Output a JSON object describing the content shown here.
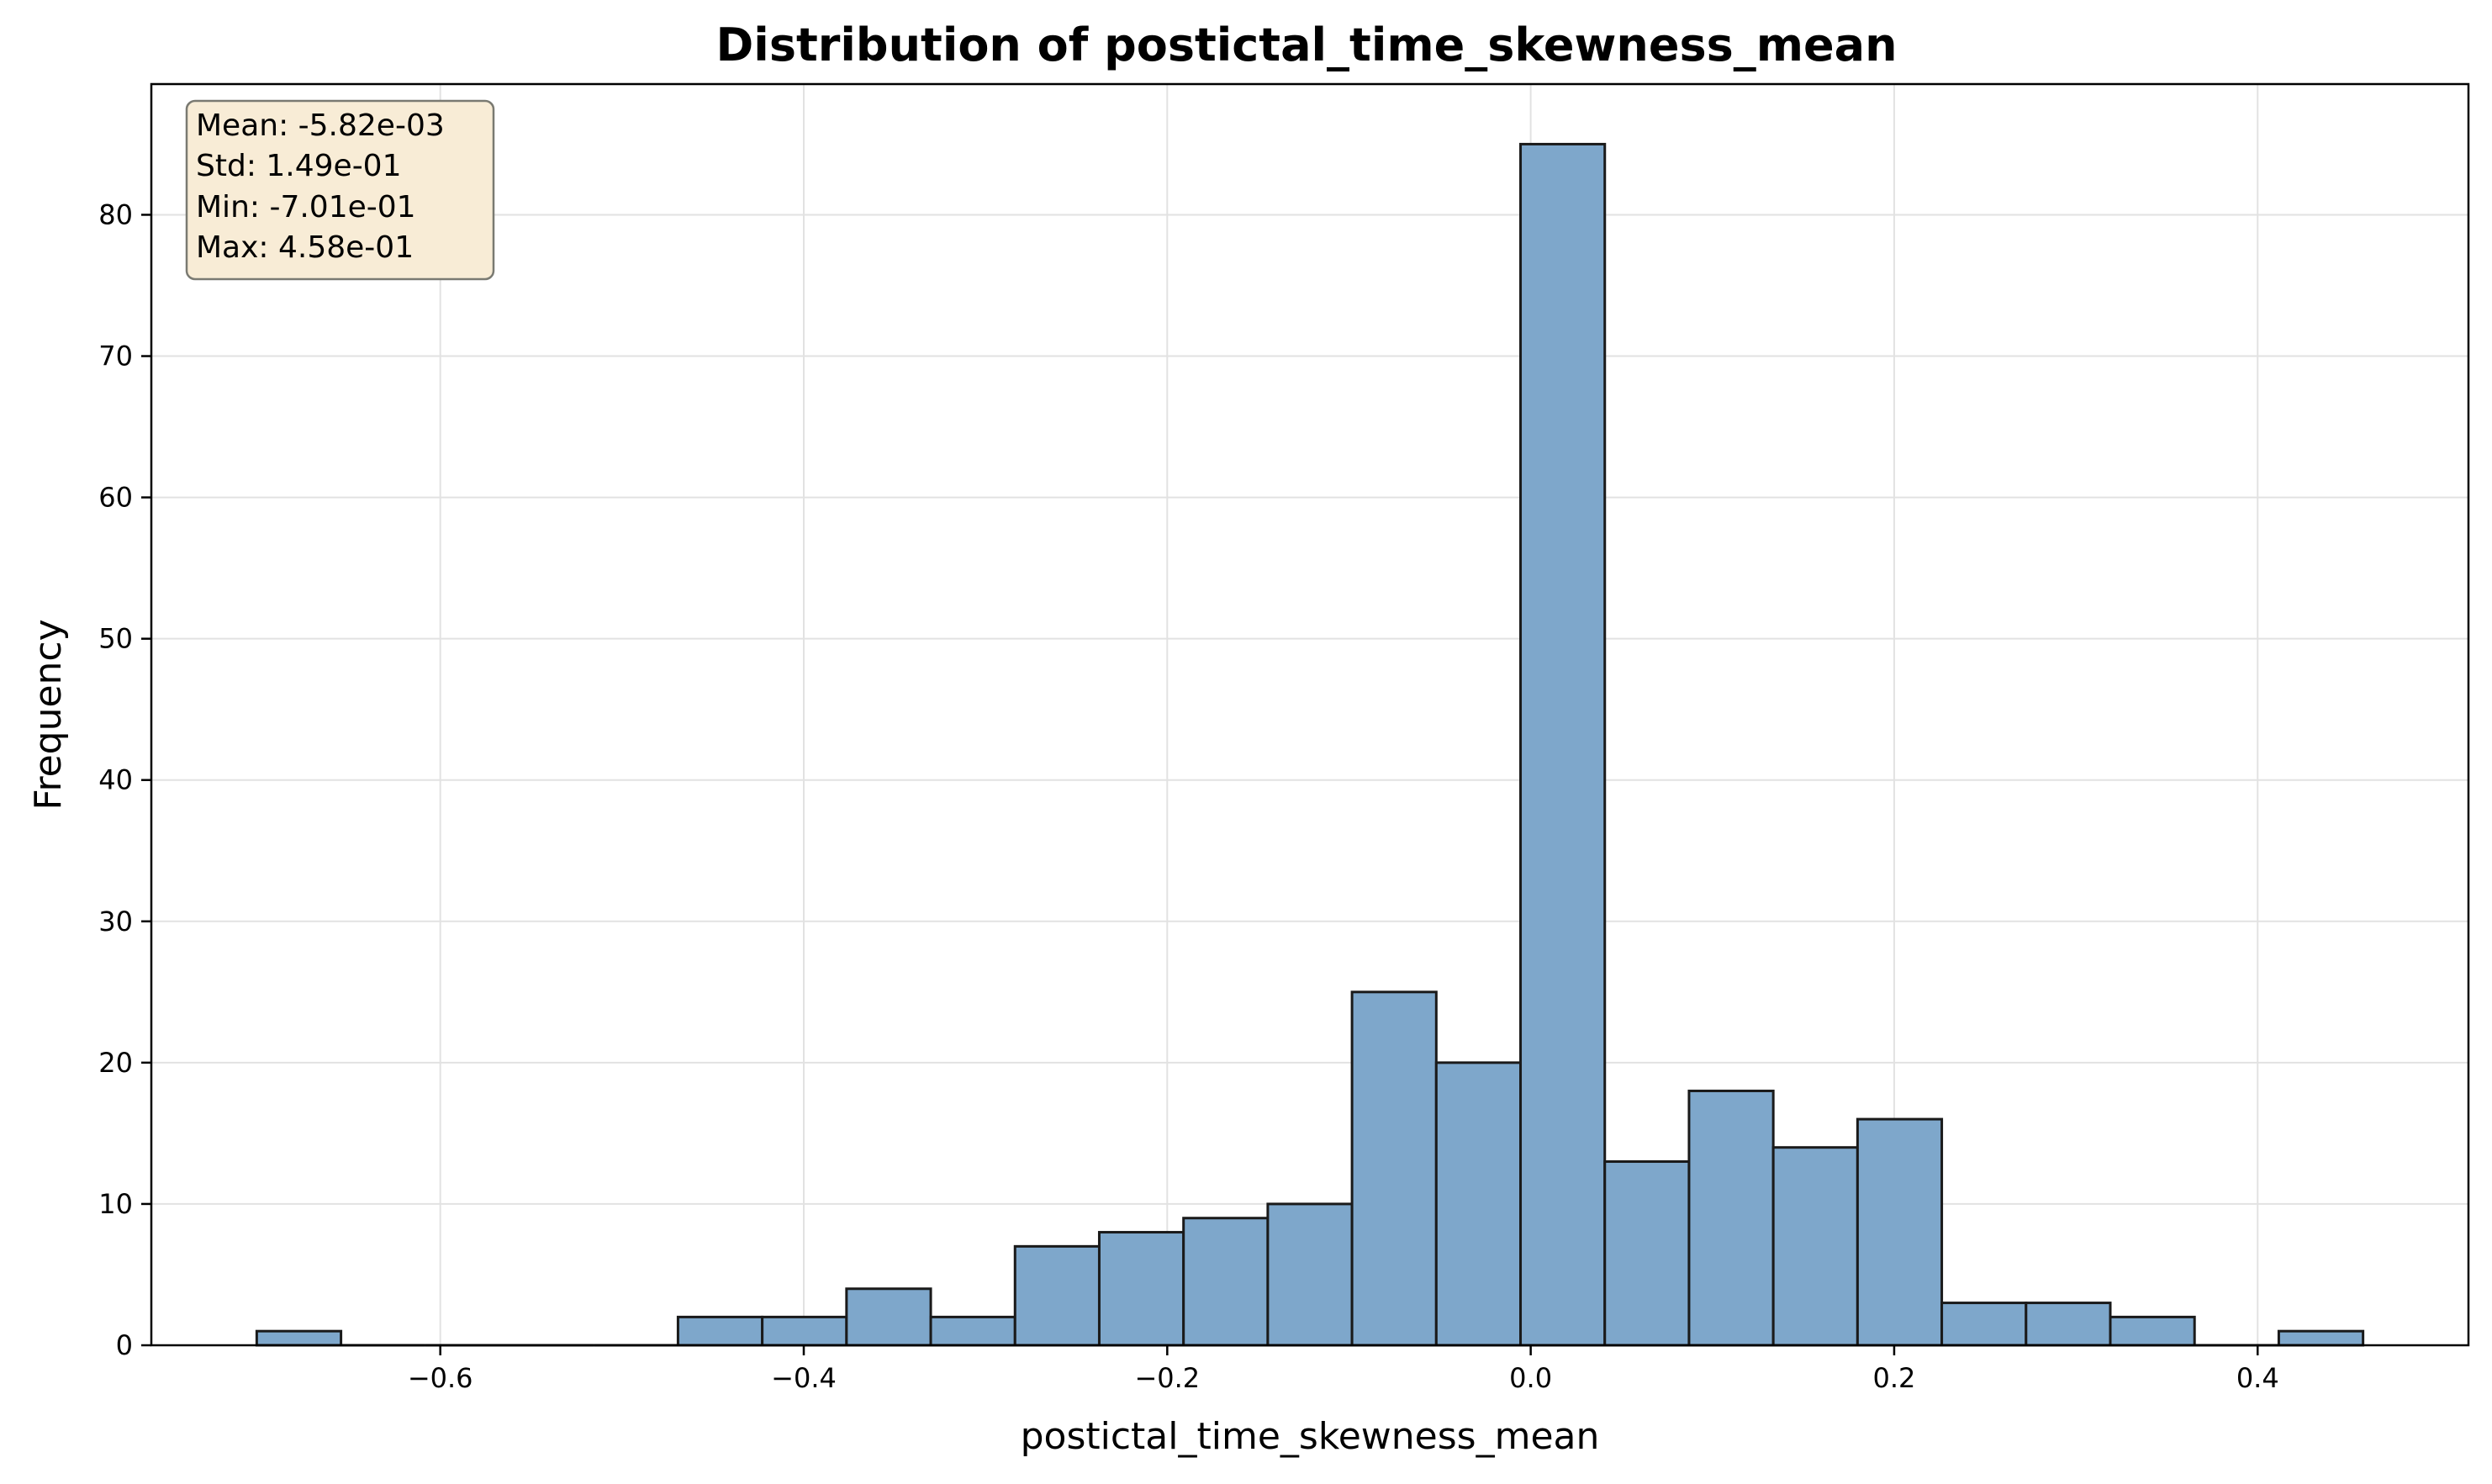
{
  "chart_data": {
    "type": "bar",
    "title": "Distribution of postictal_time_skewness_mean",
    "xlabel": "postictal_time_skewness_mean",
    "ylabel": "Frequency",
    "xlim": [
      -0.759,
      0.516
    ],
    "ylim": [
      0,
      89.25
    ],
    "xticks": [
      {
        "value": -0.6,
        "label": "−0.6"
      },
      {
        "value": -0.4,
        "label": "−0.4"
      },
      {
        "value": -0.2,
        "label": "−0.2"
      },
      {
        "value": 0.0,
        "label": "0.0"
      },
      {
        "value": 0.2,
        "label": "0.2"
      },
      {
        "value": 0.4,
        "label": "0.4"
      }
    ],
    "yticks": [
      {
        "value": 0,
        "label": "0"
      },
      {
        "value": 10,
        "label": "10"
      },
      {
        "value": 20,
        "label": "20"
      },
      {
        "value": 30,
        "label": "30"
      },
      {
        "value": 40,
        "label": "40"
      },
      {
        "value": 50,
        "label": "50"
      },
      {
        "value": 60,
        "label": "60"
      },
      {
        "value": 70,
        "label": "70"
      },
      {
        "value": 80,
        "label": "80"
      }
    ],
    "bin_start": -0.701,
    "bin_width": 0.04636,
    "counts": [
      1,
      0,
      0,
      0,
      0,
      2,
      2,
      4,
      2,
      7,
      8,
      9,
      10,
      25,
      20,
      85,
      13,
      18,
      14,
      16,
      3,
      3,
      2,
      0,
      1
    ],
    "grid": true,
    "bar_color": "#7ea7cb",
    "edge_color": "#1a1a1a",
    "stats_box": {
      "position": "top-left",
      "lines": [
        "Mean: -5.82e-03",
        "Std: 1.49e-01",
        "Min: -7.01e-01",
        "Max: 4.58e-01"
      ],
      "background": "#f8ecd6",
      "border": "#7a7a72"
    }
  }
}
